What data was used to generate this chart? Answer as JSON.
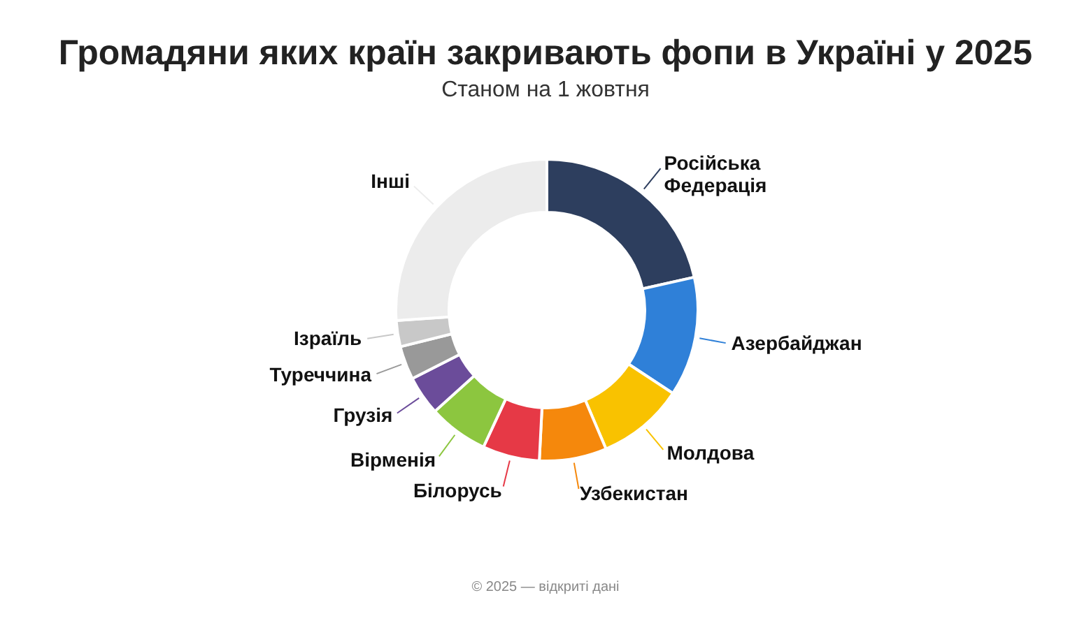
{
  "chart_data": {
    "type": "donut",
    "title": "Громадяни яких країн закривають фопи в Україні у 2025",
    "subtitle": "Станом на 1 жовтня",
    "categories": [
      "Російська Федерація",
      "Азербайджан",
      "Молдова",
      "Узбекистан",
      "Білорусь",
      "Вірменія",
      "Грузія",
      "Туреччина",
      "Ізраїль",
      "Інші"
    ],
    "values": [
      21.5,
      12.8,
      9.3,
      7.2,
      6.1,
      6.4,
      4.2,
      3.6,
      2.8,
      26.1
    ],
    "colors": [
      "#2d3e5e",
      "#2f80d8",
      "#f9c200",
      "#f5880c",
      "#e63946",
      "#8cc63f",
      "#6b4c9a",
      "#999999",
      "#c8c8c8",
      "#ececec"
    ],
    "annotations": [
      "© 2025 — відкриті дані"
    ]
  }
}
